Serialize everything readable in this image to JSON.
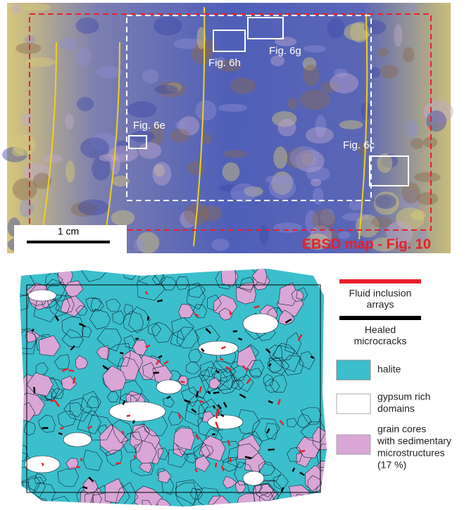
{
  "photo": {
    "labels": [
      "Fig. 6h",
      "Fig. 6g",
      "Fig. 6e",
      "Fig. 6c"
    ],
    "scale_bar": "1 cm",
    "ebsd_label": "EBSD map - Fig. 10"
  },
  "legend": {
    "fluid_inclusion_arrays": [
      "Fluid inclusion",
      "arrays"
    ],
    "healed_microcracks": [
      "Healed",
      "microcracks"
    ],
    "halite": [
      "halite"
    ],
    "gypsum": [
      "gypsum rich",
      "domains"
    ],
    "grain_cores": [
      "grain cores",
      "with sedimentary",
      "microstructures",
      "(17 %)"
    ]
  }
}
